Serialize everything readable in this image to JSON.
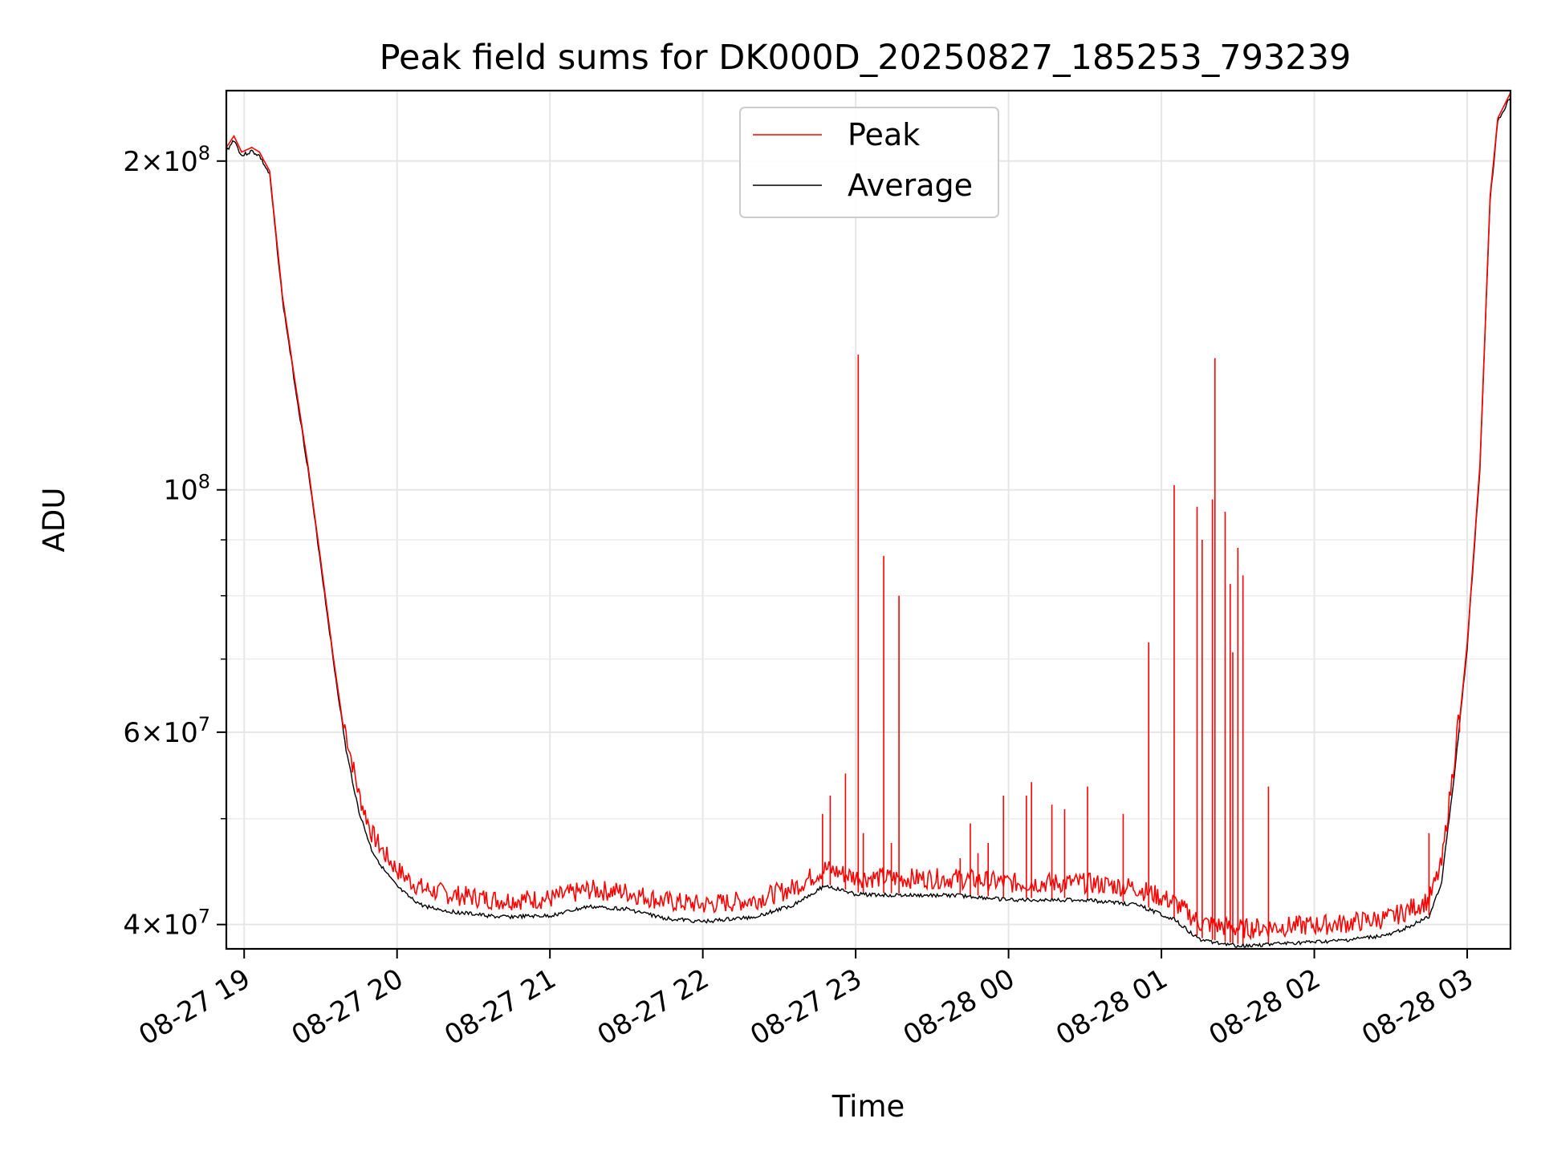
{
  "chart_data": {
    "type": "line",
    "title": "Peak field sums for DK000D_20250827_185253_793239",
    "xlabel": "Time",
    "ylabel": "ADU",
    "x_range": [
      "08-27 18:53",
      "08-28 03:17"
    ],
    "ylim": [
      38000000,
      232000000
    ],
    "y_scale": "log",
    "grid": true,
    "legend_position": "upper center",
    "x_ticks": [
      {
        "t": "08-27 19:00",
        "label": "08-27 19"
      },
      {
        "t": "08-27 20:00",
        "label": "08-27 20"
      },
      {
        "t": "08-27 21:00",
        "label": "08-27 21"
      },
      {
        "t": "08-27 22:00",
        "label": "08-27 22"
      },
      {
        "t": "08-27 23:00",
        "label": "08-27 23"
      },
      {
        "t": "08-28 00:00",
        "label": "08-28 00"
      },
      {
        "t": "08-28 01:00",
        "label": "08-28 01"
      },
      {
        "t": "08-28 02:00",
        "label": "08-28 02"
      },
      {
        "t": "08-28 03:00",
        "label": "08-28 03"
      }
    ],
    "y_ticks": [
      {
        "value": 40000000,
        "mantissa": "4",
        "exp": "7"
      },
      {
        "value": 60000000,
        "mantissa": "6",
        "exp": "7"
      },
      {
        "value": 100000000,
        "mantissa": "",
        "exp": "8"
      },
      {
        "value": 200000000,
        "mantissa": "2",
        "exp": "8"
      }
    ],
    "y_minor_ticks": [
      50000000,
      70000000,
      80000000,
      90000000
    ],
    "series": [
      {
        "name": "Average",
        "color": "#000000",
        "points": [
          [
            "08-27 18:53",
            205000000
          ],
          [
            "08-27 18:56",
            210000000
          ],
          [
            "08-27 18:59",
            203000000
          ],
          [
            "08-27 19:03",
            205000000
          ],
          [
            "08-27 19:06",
            203000000
          ],
          [
            "08-27 19:10",
            195000000
          ],
          [
            "08-27 19:15",
            150000000
          ],
          [
            "08-27 19:20",
            125000000
          ],
          [
            "08-27 19:25",
            105000000
          ],
          [
            "08-27 19:30",
            86000000
          ],
          [
            "08-27 19:35",
            70000000
          ],
          [
            "08-27 19:40",
            58000000
          ],
          [
            "08-27 19:45",
            51000000
          ],
          [
            "08-27 19:50",
            47000000
          ],
          [
            "08-27 19:55",
            45000000
          ],
          [
            "08-27 20:00",
            43500000
          ],
          [
            "08-27 20:05",
            42500000
          ],
          [
            "08-27 20:10",
            41800000
          ],
          [
            "08-27 20:20",
            41300000
          ],
          [
            "08-27 20:40",
            40800000
          ],
          [
            "08-27 21:00",
            40900000
          ],
          [
            "08-27 21:15",
            41700000
          ],
          [
            "08-27 21:30",
            41500000
          ],
          [
            "08-27 21:45",
            40700000
          ],
          [
            "08-27 22:00",
            40400000
          ],
          [
            "08-27 22:20",
            40800000
          ],
          [
            "08-27 22:35",
            41800000
          ],
          [
            "08-27 22:48",
            43600000
          ],
          [
            "08-27 23:00",
            42800000
          ],
          [
            "08-27 23:20",
            42700000
          ],
          [
            "08-27 23:40",
            42700000
          ],
          [
            "08-28 00:00",
            42300000
          ],
          [
            "08-28 00:30",
            42300000
          ],
          [
            "08-28 00:50",
            41900000
          ],
          [
            "08-28 01:05",
            40600000
          ],
          [
            "08-28 01:15",
            38900000
          ],
          [
            "08-28 01:30",
            38400000
          ],
          [
            "08-28 01:50",
            38600000
          ],
          [
            "08-28 02:10",
            38800000
          ],
          [
            "08-28 02:30",
            39300000
          ],
          [
            "08-28 02:45",
            40800000
          ],
          [
            "08-28 02:50",
            44000000
          ],
          [
            "08-28 02:55",
            55000000
          ],
          [
            "08-28 03:00",
            72000000
          ],
          [
            "08-28 03:05",
            105000000
          ],
          [
            "08-28 03:09",
            185000000
          ],
          [
            "08-28 03:12",
            218000000
          ],
          [
            "08-28 03:17",
            230000000
          ]
        ]
      },
      {
        "name": "Peak",
        "color": "#ff0000",
        "spikes": [
          [
            "08-27 22:47",
            50500000
          ],
          [
            "08-27 22:50",
            52500000
          ],
          [
            "08-27 22:56",
            55000000
          ],
          [
            "08-27 23:01",
            133000000
          ],
          [
            "08-27 23:03",
            48500000
          ],
          [
            "08-27 23:11",
            87000000
          ],
          [
            "08-27 23:14",
            47500000
          ],
          [
            "08-27 23:17",
            80000000
          ],
          [
            "08-27 23:41",
            46000000
          ],
          [
            "08-27 23:45",
            49500000
          ],
          [
            "08-27 23:48",
            46500000
          ],
          [
            "08-27 23:52",
            47500000
          ],
          [
            "08-27 23:58",
            52500000
          ],
          [
            "08-28 00:07",
            52500000
          ],
          [
            "08-28 00:09",
            54000000
          ],
          [
            "08-28 00:17",
            51500000
          ],
          [
            "08-28 00:22",
            51000000
          ],
          [
            "08-28 00:31",
            53500000
          ],
          [
            "08-28 00:45",
            50500000
          ],
          [
            "08-28 00:55",
            72500000
          ],
          [
            "08-28 01:05",
            101000000
          ],
          [
            "08-28 01:14",
            96500000
          ],
          [
            "08-28 01:16",
            90000000
          ],
          [
            "08-28 01:20",
            98000000
          ],
          [
            "08-28 01:21",
            132000000
          ],
          [
            "08-28 01:25",
            95500000
          ],
          [
            "08-28 01:27",
            82000000
          ],
          [
            "08-28 01:28",
            71000000
          ],
          [
            "08-28 01:30",
            88500000
          ],
          [
            "08-28 01:32",
            83500000
          ],
          [
            "08-28 01:42",
            53500000
          ],
          [
            "08-28 02:45",
            48500000
          ],
          [
            "08-28 02:57",
            60000000
          ]
        ]
      }
    ]
  }
}
